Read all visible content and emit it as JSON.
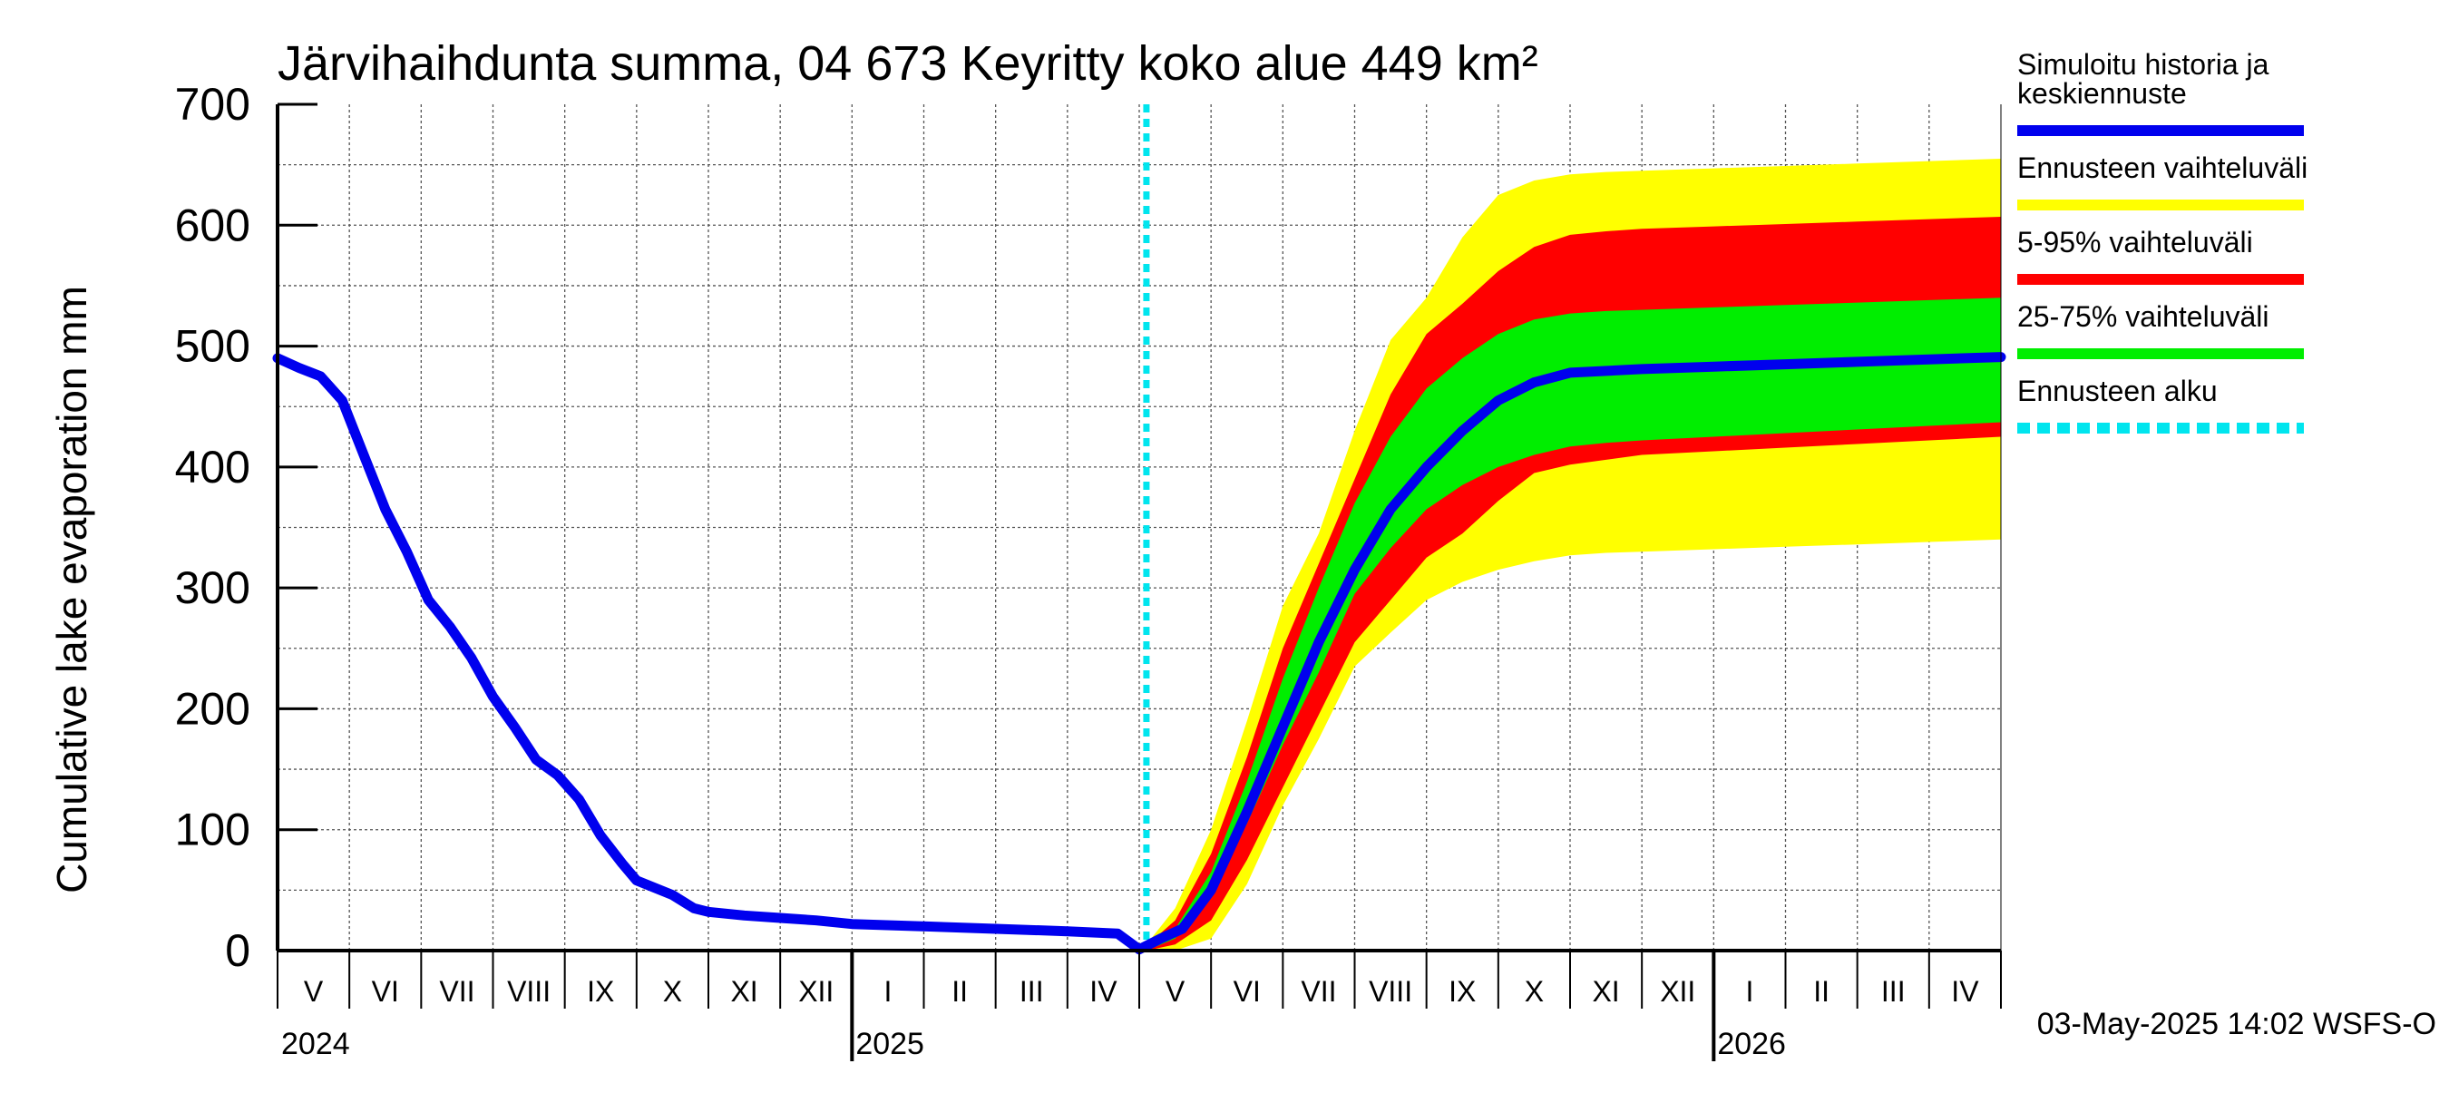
{
  "chart_data": {
    "type": "area",
    "title": "Järvihaihdunta summa, 04 673 Keyritty koko alue 449 km²",
    "ylabel": "Cumulative lake evaporation   mm",
    "xlabel": "",
    "ylim": [
      0,
      700
    ],
    "yticks": [
      0,
      100,
      200,
      300,
      400,
      500,
      600,
      700
    ],
    "x_range_months": [
      0,
      24
    ],
    "grid": true,
    "legend_placement": "right",
    "month_labels": [
      "V",
      "VI",
      "VII",
      "VIII",
      "IX",
      "X",
      "XI",
      "XII",
      "I",
      "II",
      "III",
      "IV",
      "V",
      "VI",
      "VII",
      "VIII",
      "IX",
      "X",
      "XI",
      "XII",
      "I",
      "II",
      "III",
      "IV"
    ],
    "year_labels": [
      {
        "label": "2024",
        "month": 0
      },
      {
        "label": "2025",
        "month": 8
      },
      {
        "label": "2026",
        "month": 20
      }
    ],
    "forecast_start_month": 12.1,
    "series": [
      {
        "name": "Ennusteen vaihteluväli",
        "role": "band",
        "color": "#ffff00",
        "x": [
          12.1,
          12.5,
          13.0,
          13.5,
          14.0,
          14.5,
          15.0,
          15.5,
          16.0,
          16.5,
          17.0,
          17.5,
          18.0,
          18.5,
          19.0,
          20.0,
          21.0,
          22.0,
          23.0,
          24.0
        ],
        "upper": [
          5,
          35,
          100,
          190,
          285,
          345,
          430,
          505,
          540,
          590,
          625,
          637,
          642,
          644,
          645,
          647,
          649,
          651,
          653,
          655
        ],
        "lower": [
          0,
          0,
          10,
          55,
          120,
          175,
          235,
          263,
          290,
          305,
          315,
          322,
          327,
          329,
          330,
          332,
          334,
          336,
          338,
          340
        ]
      },
      {
        "name": "5-95% vaihteluväli",
        "role": "band",
        "color": "#ff0000",
        "x": [
          12.1,
          12.5,
          13.0,
          13.5,
          14.0,
          14.5,
          15.0,
          15.5,
          16.0,
          16.5,
          17.0,
          17.5,
          18.0,
          18.5,
          19.0,
          20.0,
          21.0,
          22.0,
          23.0,
          24.0
        ],
        "upper": [
          4,
          25,
          80,
          160,
          250,
          320,
          390,
          460,
          510,
          535,
          562,
          582,
          592,
          595,
          597,
          599,
          601,
          603,
          605,
          607
        ],
        "lower": [
          0,
          5,
          25,
          75,
          135,
          195,
          255,
          290,
          325,
          345,
          372,
          395,
          402,
          406,
          410,
          413,
          416,
          419,
          422,
          425
        ]
      },
      {
        "name": "25-75% vaihteluväli",
        "role": "band",
        "color": "#00ee00",
        "x": [
          12.1,
          12.5,
          13.0,
          13.5,
          14.0,
          14.5,
          15.0,
          15.5,
          16.0,
          16.5,
          17.0,
          17.5,
          18.0,
          18.5,
          19.0,
          20.0,
          21.0,
          22.0,
          23.0,
          24.0
        ],
        "upper": [
          3,
          18,
          65,
          140,
          225,
          300,
          370,
          425,
          465,
          490,
          510,
          522,
          527,
          529,
          530,
          532,
          534,
          536,
          538,
          540
        ],
        "lower": [
          0,
          10,
          45,
          105,
          170,
          230,
          295,
          333,
          365,
          385,
          400,
          410,
          417,
          420,
          422,
          425,
          428,
          431,
          434,
          437
        ]
      },
      {
        "name": "Simuloitu historia ja keskiennuste",
        "role": "line",
        "color": "#0000ee",
        "x": [
          0.0,
          0.3,
          0.6,
          0.9,
          1.2,
          1.5,
          1.8,
          2.1,
          2.4,
          2.7,
          3.0,
          3.3,
          3.6,
          3.9,
          4.2,
          4.5,
          4.8,
          5.0,
          5.5,
          5.8,
          6.0,
          6.5,
          7.0,
          7.5,
          8.0,
          9.0,
          10.0,
          11.0,
          11.7,
          12.0,
          12.3,
          12.6,
          13.0,
          13.5,
          14.0,
          14.5,
          15.0,
          15.5,
          16.0,
          16.5,
          17.0,
          17.5,
          18.0,
          19.0,
          20.0,
          21.0,
          22.0,
          23.0,
          24.0
        ],
        "y": [
          490,
          482,
          475,
          455,
          410,
          365,
          330,
          290,
          268,
          242,
          210,
          185,
          158,
          145,
          125,
          95,
          72,
          58,
          46,
          35,
          32,
          29,
          27,
          25,
          22,
          20,
          18,
          16,
          14,
          1,
          10,
          18,
          50,
          115,
          185,
          255,
          315,
          365,
          400,
          430,
          455,
          470,
          478,
          481,
          483,
          485,
          487,
          489,
          491
        ]
      },
      {
        "name": "Ennusteen alku",
        "role": "vline",
        "color": "#00e5ee"
      }
    ]
  },
  "legend": {
    "items": [
      {
        "lines": [
          "Simuloitu historia ja",
          "keskiennuste"
        ],
        "color": "#0000ee",
        "style": "solid"
      },
      {
        "lines": [
          "Ennusteen vaihteluväli"
        ],
        "color": "#ffff00",
        "style": "solid"
      },
      {
        "lines": [
          "5-95% vaihteluväli"
        ],
        "color": "#ff0000",
        "style": "solid"
      },
      {
        "lines": [
          "25-75% vaihteluväli"
        ],
        "color": "#00ee00",
        "style": "solid"
      },
      {
        "lines": [
          "Ennusteen alku"
        ],
        "color": "#00e5ee",
        "style": "dashed"
      }
    ]
  },
  "footer": "03-May-2025 14:02 WSFS-O"
}
